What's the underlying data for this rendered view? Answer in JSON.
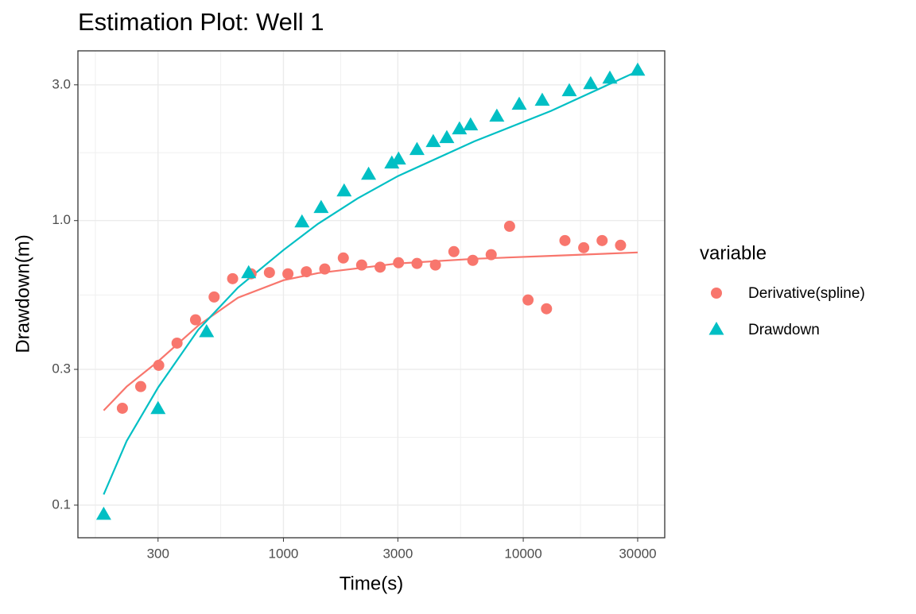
{
  "chart_data": {
    "type": "scatter",
    "title": "Estimation Plot: Well 1",
    "x_label": "Time(s)",
    "y_label": "Drawdown(m)",
    "legend_title": "variable",
    "log_x": true,
    "log_y": true,
    "grid": true,
    "xlim": [
      139,
      38900
    ],
    "ylim": [
      0.0768,
      3.95
    ],
    "xticks": [
      300,
      1000,
      3000,
      10000,
      30000
    ],
    "yticks": [
      {
        "value": 0.1,
        "label": "0.1"
      },
      0.3,
      {
        "value": 1,
        "label": "1.0"
      },
      {
        "value": 3,
        "label": "3.0"
      }
    ],
    "series": [
      {
        "name": "Derivative(spline)",
        "color": "#F8766D",
        "shape": "circle",
        "x": [
          213,
          254,
          302,
          360,
          430,
          514,
          614,
          733,
          874,
          1044,
          1246,
          1487,
          1777,
          2119,
          2530,
          3020,
          3605,
          4303,
          5137,
          6160,
          7350,
          8770,
          10470,
          12500,
          14920,
          17870,
          21320,
          25450
        ],
        "values": [
          0.219,
          0.261,
          0.31,
          0.371,
          0.448,
          0.539,
          0.625,
          0.65,
          0.657,
          0.65,
          0.661,
          0.676,
          0.739,
          0.698,
          0.686,
          0.711,
          0.707,
          0.698,
          0.778,
          0.725,
          0.759,
          0.955,
          0.526,
          0.49,
          0.851,
          0.803,
          0.851,
          0.819
        ]
      },
      {
        "name": "Drawdown",
        "color": "#00BFC4",
        "shape": "triangle",
        "x": [
          178,
          300,
          478,
          716,
          1195,
          1436,
          1791,
          2265,
          2831,
          3020,
          3605,
          4214,
          4800,
          5420,
          6030,
          7760,
          9620,
          12000,
          15560,
          19100,
          22970,
          30000
        ],
        "values": [
          0.0926,
          0.218,
          0.406,
          0.654,
          0.987,
          1.109,
          1.268,
          1.452,
          1.589,
          1.641,
          1.773,
          1.891,
          1.953,
          2.095,
          2.164,
          2.322,
          2.557,
          2.64,
          2.853,
          3.02,
          3.16,
          3.37
        ]
      }
    ],
    "fit_lines": [
      {
        "color": "#F8766D",
        "x": [
          178,
          222,
          300,
          442,
          647,
          1000,
          1393,
          3000,
          6260,
          13060,
          30000
        ],
        "values": [
          0.215,
          0.261,
          0.32,
          0.428,
          0.536,
          0.617,
          0.654,
          0.707,
          0.734,
          0.752,
          0.773
        ]
      },
      {
        "color": "#00BFC4",
        "x": [
          178,
          222,
          300,
          442,
          647,
          1000,
          1393,
          2040,
          3000,
          6260,
          13060,
          30000
        ],
        "values": [
          0.109,
          0.168,
          0.259,
          0.414,
          0.582,
          0.788,
          0.974,
          1.197,
          1.433,
          1.9,
          2.43,
          3.35
        ]
      }
    ]
  }
}
